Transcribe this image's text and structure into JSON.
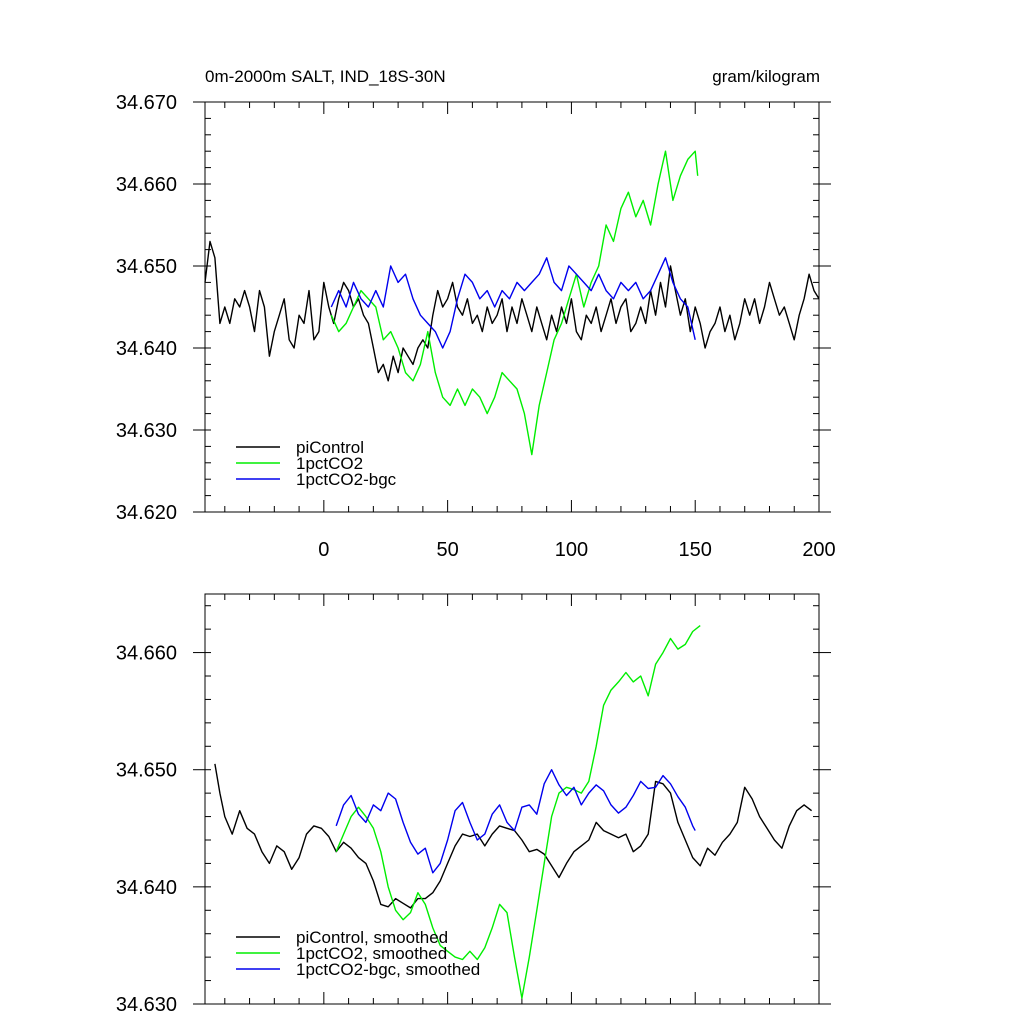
{
  "chart_data": [
    {
      "type": "line",
      "title_left": "0m-2000m SALT, IND_18S-30N",
      "title_right": "gram/kilogram",
      "xlim": [
        -48,
        200
      ],
      "ylim": [
        34.62,
        34.67
      ],
      "xticks": [
        0,
        50,
        100,
        150,
        200
      ],
      "xtick_labels": [
        "0",
        "50",
        "100",
        "150",
        "200"
      ],
      "yticks": [
        34.62,
        34.63,
        34.64,
        34.65,
        34.66,
        34.67
      ],
      "ytick_labels": [
        "34.620",
        "34.630",
        "34.640",
        "34.650",
        "34.660",
        "34.670"
      ],
      "legend_position": "bottom-left",
      "series": [
        {
          "name": "piControl",
          "color": "#000000",
          "x": [
            -48,
            -46,
            -44,
            -42,
            -40,
            -38,
            -36,
            -34,
            -32,
            -30,
            -28,
            -26,
            -24,
            -22,
            -20,
            -18,
            -16,
            -14,
            -12,
            -10,
            -8,
            -6,
            -4,
            -2,
            0,
            2,
            4,
            6,
            8,
            10,
            12,
            14,
            16,
            18,
            20,
            22,
            24,
            26,
            28,
            30,
            32,
            34,
            36,
            38,
            40,
            42,
            44,
            46,
            48,
            50,
            52,
            54,
            56,
            58,
            60,
            62,
            64,
            66,
            68,
            70,
            72,
            74,
            76,
            78,
            80,
            82,
            84,
            86,
            88,
            90,
            92,
            94,
            96,
            98,
            100,
            102,
            104,
            106,
            108,
            110,
            112,
            114,
            116,
            118,
            120,
            122,
            124,
            126,
            128,
            130,
            132,
            134,
            136,
            138,
            140,
            142,
            144,
            146,
            148,
            150,
            152,
            154,
            156,
            158,
            160,
            162,
            164,
            166,
            168,
            170,
            172,
            174,
            176,
            178,
            180,
            182,
            184,
            186,
            188,
            190,
            192,
            194,
            196,
            198,
            200
          ],
          "y": [
            34.648,
            34.653,
            34.651,
            34.643,
            34.645,
            34.643,
            34.646,
            34.645,
            34.647,
            34.645,
            34.642,
            34.647,
            34.645,
            34.639,
            34.642,
            34.644,
            34.646,
            34.641,
            34.64,
            34.644,
            34.643,
            34.647,
            34.641,
            34.642,
            34.648,
            34.645,
            34.643,
            34.646,
            34.648,
            34.647,
            34.645,
            34.646,
            34.644,
            34.643,
            34.64,
            34.637,
            34.638,
            34.636,
            34.639,
            34.637,
            34.64,
            34.639,
            34.638,
            34.64,
            34.641,
            34.64,
            34.644,
            34.647,
            34.645,
            34.646,
            34.648,
            34.645,
            34.644,
            34.646,
            34.643,
            34.644,
            34.642,
            34.645,
            34.643,
            34.644,
            34.646,
            34.642,
            34.645,
            34.643,
            34.646,
            34.644,
            34.642,
            34.645,
            34.643,
            34.641,
            34.644,
            34.642,
            34.645,
            34.643,
            34.646,
            34.642,
            34.641,
            34.644,
            34.643,
            34.645,
            34.642,
            34.644,
            34.646,
            34.643,
            34.645,
            34.646,
            34.642,
            34.643,
            34.645,
            34.643,
            34.647,
            34.644,
            34.648,
            34.645,
            34.65,
            34.647,
            34.644,
            34.646,
            34.642,
            34.645,
            34.643,
            34.64,
            34.642,
            34.643,
            34.645,
            34.642,
            34.644,
            34.641,
            34.643,
            34.646,
            34.644,
            34.646,
            34.643,
            34.645,
            34.648,
            34.646,
            34.644,
            34.645,
            34.643,
            34.641,
            34.644,
            34.646,
            34.649,
            34.647,
            34.646
          ]
        },
        {
          "name": "1pctCO2",
          "color": "#00ee00",
          "x": [
            3,
            6,
            9,
            12,
            15,
            18,
            21,
            24,
            27,
            30,
            33,
            36,
            39,
            42,
            45,
            48,
            51,
            54,
            57,
            60,
            63,
            66,
            69,
            72,
            75,
            78,
            81,
            84,
            87,
            90,
            93,
            96,
            99,
            102,
            105,
            108,
            111,
            114,
            117,
            120,
            123,
            126,
            129,
            132,
            135,
            138,
            141,
            144,
            147,
            150,
            151
          ],
          "y": [
            34.644,
            34.642,
            34.643,
            34.645,
            34.647,
            34.646,
            34.645,
            34.641,
            34.642,
            34.64,
            34.637,
            34.636,
            34.638,
            34.642,
            34.637,
            34.634,
            34.633,
            34.635,
            34.633,
            34.635,
            34.634,
            34.632,
            34.634,
            34.637,
            34.636,
            34.635,
            34.632,
            34.627,
            34.633,
            34.637,
            34.641,
            34.643,
            34.646,
            34.649,
            34.645,
            34.648,
            34.65,
            34.655,
            34.653,
            34.657,
            34.659,
            34.656,
            34.658,
            34.655,
            34.66,
            34.664,
            34.658,
            34.661,
            34.663,
            34.664,
            34.661
          ]
        },
        {
          "name": "1pctCO2-bgc",
          "color": "#0000ee",
          "x": [
            3,
            6,
            9,
            12,
            15,
            18,
            21,
            24,
            27,
            30,
            33,
            36,
            39,
            42,
            45,
            48,
            51,
            54,
            57,
            60,
            63,
            66,
            69,
            72,
            75,
            78,
            81,
            84,
            87,
            90,
            93,
            96,
            99,
            102,
            105,
            108,
            111,
            114,
            117,
            120,
            123,
            126,
            129,
            132,
            135,
            138,
            141,
            144,
            147,
            150
          ],
          "y": [
            34.645,
            34.647,
            34.645,
            34.648,
            34.646,
            34.645,
            34.647,
            34.645,
            34.65,
            34.648,
            34.649,
            34.646,
            34.644,
            34.643,
            34.642,
            34.64,
            34.642,
            34.646,
            34.649,
            34.648,
            34.646,
            34.647,
            34.645,
            34.647,
            34.646,
            34.648,
            34.647,
            34.648,
            34.649,
            34.651,
            34.648,
            34.647,
            34.65,
            34.649,
            34.648,
            34.647,
            34.649,
            34.647,
            34.646,
            34.648,
            34.647,
            34.648,
            34.646,
            34.647,
            34.649,
            34.651,
            34.648,
            34.646,
            34.645,
            34.641
          ]
        }
      ]
    },
    {
      "type": "line",
      "xlim": [
        -48,
        200
      ],
      "ylim": [
        34.63,
        34.665
      ],
      "xticks": [
        0,
        50,
        100,
        150,
        200
      ],
      "yticks": [
        34.63,
        34.64,
        34.65,
        34.66
      ],
      "ytick_labels": [
        "34.630",
        "34.640",
        "34.650",
        "34.660"
      ],
      "legend_position": "bottom-left",
      "series": [
        {
          "name": "piControl, smoothed",
          "color": "#000000",
          "x": [
            -44,
            -42,
            -40,
            -37,
            -34,
            -31,
            -28,
            -25,
            -22,
            -19,
            -16,
            -13,
            -10,
            -7,
            -4,
            -1,
            2,
            5,
            8,
            11,
            14,
            17,
            20,
            23,
            26,
            29,
            32,
            35,
            38,
            41,
            44,
            47,
            50,
            53,
            56,
            59,
            62,
            65,
            68,
            71,
            74,
            77,
            80,
            83,
            86,
            89,
            92,
            95,
            98,
            101,
            104,
            107,
            110,
            113,
            116,
            119,
            122,
            125,
            128,
            131,
            134,
            137,
            140,
            143,
            146,
            149,
            152,
            155,
            158,
            161,
            164,
            167,
            170,
            173,
            176,
            179,
            182,
            185,
            188,
            191,
            194,
            197
          ],
          "y": [
            34.6505,
            34.648,
            34.646,
            34.6445,
            34.6465,
            34.645,
            34.6445,
            34.643,
            34.642,
            34.6435,
            34.643,
            34.6415,
            34.6425,
            34.6445,
            34.6452,
            34.645,
            34.6443,
            34.643,
            34.6438,
            34.6433,
            34.6425,
            34.642,
            34.6405,
            34.6385,
            34.6383,
            34.639,
            34.6386,
            34.6382,
            34.639,
            34.639,
            34.6395,
            34.6405,
            34.642,
            34.6435,
            34.6445,
            34.6443,
            34.6445,
            34.6435,
            34.6445,
            34.6452,
            34.645,
            34.6448,
            34.644,
            34.643,
            34.6432,
            34.6428,
            34.6418,
            34.6408,
            34.642,
            34.643,
            34.6435,
            34.644,
            34.6455,
            34.6448,
            34.6445,
            34.6442,
            34.6445,
            34.643,
            34.6435,
            34.6445,
            34.649,
            34.6488,
            34.648,
            34.6455,
            34.644,
            34.6425,
            34.6418,
            34.6433,
            34.6427,
            34.6438,
            34.6445,
            34.6455,
            34.6485,
            34.6475,
            34.646,
            34.645,
            34.644,
            34.6433,
            34.6452,
            34.6465,
            34.647,
            34.6465
          ]
        },
        {
          "name": "1pctCO2, smoothed",
          "color": "#00ee00",
          "x": [
            5,
            8,
            11,
            14,
            17,
            20,
            23,
            26,
            29,
            32,
            35,
            38,
            41,
            44,
            47,
            50,
            53,
            56,
            59,
            62,
            65,
            68,
            71,
            74,
            77,
            80,
            83,
            86,
            89,
            92,
            95,
            98,
            101,
            104,
            107,
            110,
            113,
            116,
            119,
            122,
            125,
            128,
            131,
            134,
            137,
            140,
            143,
            146,
            149,
            152
          ],
          "y": [
            34.643,
            34.6445,
            34.646,
            34.6468,
            34.646,
            34.645,
            34.643,
            34.64,
            34.638,
            34.6372,
            34.6378,
            34.6395,
            34.6385,
            34.6365,
            34.635,
            34.6345,
            34.634,
            34.6338,
            34.6345,
            34.6338,
            34.6348,
            34.6365,
            34.6385,
            34.6378,
            34.634,
            34.6305,
            34.634,
            34.638,
            34.642,
            34.646,
            34.648,
            34.6485,
            34.6483,
            34.648,
            34.649,
            34.652,
            34.6555,
            34.6568,
            34.6575,
            34.6583,
            34.6575,
            34.658,
            34.6563,
            34.659,
            34.66,
            34.6612,
            34.6603,
            34.6607,
            34.6618,
            34.6623
          ]
        },
        {
          "name": "1pctCO2-bgc, smoothed",
          "color": "#0000ee",
          "x": [
            5,
            8,
            11,
            14,
            17,
            20,
            23,
            26,
            29,
            32,
            35,
            38,
            41,
            44,
            47,
            50,
            53,
            56,
            59,
            62,
            65,
            68,
            71,
            74,
            77,
            80,
            83,
            86,
            89,
            92,
            95,
            98,
            101,
            104,
            107,
            110,
            113,
            116,
            119,
            122,
            125,
            128,
            131,
            134,
            137,
            140,
            143,
            146,
            149,
            150
          ],
          "y": [
            34.6452,
            34.647,
            34.6478,
            34.6462,
            34.6455,
            34.647,
            34.6465,
            34.648,
            34.6475,
            34.6455,
            34.6438,
            34.6428,
            34.6433,
            34.6412,
            34.642,
            34.644,
            34.6465,
            34.6472,
            34.6455,
            34.644,
            34.6445,
            34.6462,
            34.647,
            34.6455,
            34.6448,
            34.6468,
            34.647,
            34.6462,
            34.6488,
            34.65,
            34.6487,
            34.6478,
            34.6485,
            34.647,
            34.648,
            34.6487,
            34.6482,
            34.647,
            34.6463,
            34.6468,
            34.6478,
            34.649,
            34.6484,
            34.6485,
            34.6495,
            34.6488,
            34.6477,
            34.6468,
            34.6452,
            34.6448
          ]
        }
      ]
    }
  ]
}
